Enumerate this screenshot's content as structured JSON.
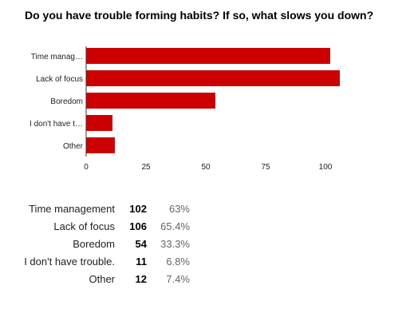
{
  "title": "Do you have trouble forming habits? If so, what slows you down?",
  "chart_data": {
    "type": "bar",
    "orientation": "horizontal",
    "categories": [
      "Time manag…",
      "Lack of focus",
      "Boredom",
      "I don't have t…",
      "Other"
    ],
    "values": [
      102,
      106,
      54,
      11,
      12
    ],
    "xlim": [
      0,
      112.5
    ],
    "xticks": [
      0,
      25,
      50,
      75,
      100
    ],
    "grid": false,
    "legend": "none",
    "bar_color": "#cc0000"
  },
  "summary": {
    "rows": [
      {
        "label": "Time management",
        "count": "102",
        "percent": "63%"
      },
      {
        "label": "Lack of focus",
        "count": "106",
        "percent": "65.4%"
      },
      {
        "label": "Boredom",
        "count": "54",
        "percent": "33.3%"
      },
      {
        "label": "I don't have trouble.",
        "count": "11",
        "percent": "6.8%"
      },
      {
        "label": "Other",
        "count": "12",
        "percent": "7.4%"
      }
    ]
  }
}
